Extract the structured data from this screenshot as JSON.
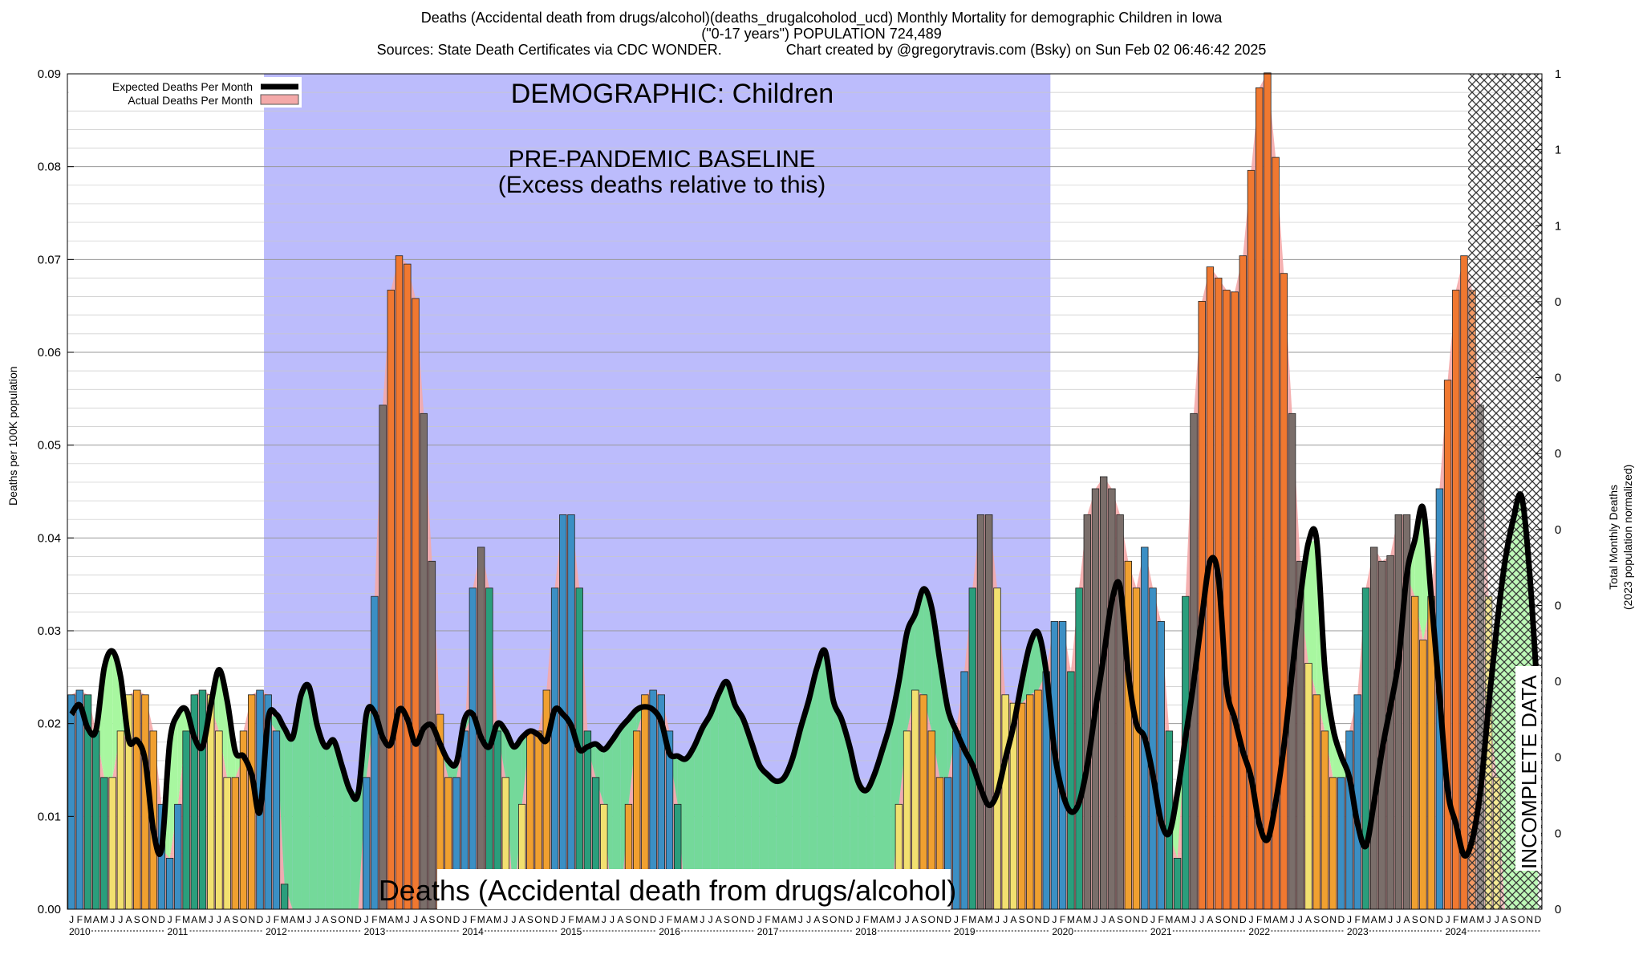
{
  "titles": {
    "line1": "Deaths (Accidental death from drugs/alcohol)(deaths_drugalcoholod_ucd) Monthly Mortality for demographic Children in Iowa",
    "line2": "(\"0-17 years\") POPULATION 724,489",
    "line3_left": "Sources: State Death Certificates via CDC WONDER.",
    "line3_right": "Chart created by @gregorytravis.com (Bsky) on Sun Feb 02 06:46:42 2025"
  },
  "colors": {
    "baseline_shade": "#bcbcfc",
    "expected_line": "#000000",
    "actual_fill": "#f4a9a9",
    "deficit_fill": "#74d99a",
    "excess_light": "#a8f7a0",
    "winter_bar": "#3b8fc4",
    "spring_bar": "#2a9e7c",
    "summer_bar": "#f2e070",
    "fall_bar": "#f0a030",
    "peak_bar": "#f07830",
    "overlap_bar": "#7a6e6a",
    "incomplete_hatch": "#444444"
  },
  "chart_data": {
    "type": "bar",
    "title": "Deaths (Accidental death from drugs/alcohol)(deaths_drugalcoholod_ucd) Monthly Mortality for demographic Children in Iowa",
    "ylabel": "Deaths per 100K population",
    "y2label_1": "Total Monthly Deaths",
    "y2label_2": "(2023 population normalized)",
    "ylim": [
      0,
      0.09
    ],
    "yticks": [
      "0.00",
      "0.01",
      "0.02",
      "0.03",
      "0.04",
      "0.05",
      "0.06",
      "0.07",
      "0.08",
      "0.09"
    ],
    "y2ticks": [
      "0",
      "0",
      "0",
      "0",
      "0",
      "0",
      "0",
      "0",
      "0",
      "1",
      "1",
      "1"
    ],
    "month_letters": [
      "J",
      "F",
      "M",
      "A",
      "M",
      "J",
      "J",
      "A",
      "S",
      "O",
      "N",
      "D"
    ],
    "years": [
      "2010",
      "2011",
      "2012",
      "2013",
      "2014",
      "2015",
      "2016",
      "2017",
      "2018",
      "2019",
      "2020",
      "2021",
      "2022",
      "2023",
      "2024"
    ],
    "legend": {
      "expected": "Expected Deaths Per Month",
      "actual": "Actual Deaths Per Month",
      "placement": "top-left"
    },
    "annotations": {
      "demographic": "DEMOGRAPHIC: Children",
      "baseline_1": "PRE-PANDEMIC BASELINE",
      "baseline_2": "(Excess deaths relative to this)",
      "bottom_label": "Deaths (Accidental death from drugs/alcohol)",
      "incomplete": "INCOMPLETE DATA"
    },
    "baseline_period": [
      "2012-01",
      "2019-12"
    ],
    "incomplete_period": [
      "2024-04",
      "2024-12"
    ],
    "actual": [
      0.0231,
      0.0236,
      0.0231,
      0.0192,
      0.0142,
      0.0142,
      0.0192,
      0.0231,
      0.0236,
      0.0231,
      0.0192,
      0.0113,
      0.0055,
      0.0113,
      0.0192,
      0.0231,
      0.0236,
      0.0231,
      0.0192,
      0.0142,
      0.0142,
      0.0192,
      0.0231,
      0.0236,
      0.0231,
      0.0192,
      0.0027,
      0.0,
      0.0,
      0.0,
      0.0,
      0.0,
      0.0,
      0.0,
      0.0,
      0.0,
      0.0142,
      0.0337,
      0.0543,
      0.0667,
      0.0704,
      0.0695,
      0.0658,
      0.0534,
      0.0375,
      0.021,
      0.0142,
      0.0142,
      0.0192,
      0.0346,
      0.039,
      0.0346,
      0.0192,
      0.0142,
      0.0,
      0.0113,
      0.0192,
      0.0192,
      0.0236,
      0.0346,
      0.0425,
      0.0425,
      0.0346,
      0.0192,
      0.0142,
      0.0113,
      0.0,
      0.0,
      0.0113,
      0.0192,
      0.0231,
      0.0236,
      0.0231,
      0.0192,
      0.0113,
      0.0,
      0.0,
      0.0,
      0.0,
      0.0,
      0.0,
      0.0,
      0.0,
      0.0,
      0.0,
      0.0,
      0.0,
      0.0,
      0.0,
      0.0,
      0.0,
      0.0,
      0.0,
      0.0,
      0.0,
      0.0,
      0.0,
      0.0,
      0.0,
      0.0,
      0.0,
      0.0113,
      0.0192,
      0.0236,
      0.0231,
      0.0192,
      0.0142,
      0.0142,
      0.0192,
      0.0256,
      0.0346,
      0.0425,
      0.0425,
      0.0346,
      0.0231,
      0.0222,
      0.0222,
      0.0231,
      0.0236,
      0.0256,
      0.031,
      0.031,
      0.0256,
      0.0346,
      0.0425,
      0.0453,
      0.0466,
      0.0453,
      0.0425,
      0.0375,
      0.0346,
      0.039,
      0.0346,
      0.031,
      0.0192,
      0.0055,
      0.0337,
      0.0534,
      0.0655,
      0.0692,
      0.068,
      0.0667,
      0.0665,
      0.0704,
      0.0796,
      0.0885,
      0.0901,
      0.081,
      0.0685,
      0.0534,
      0.0375,
      0.0265,
      0.0231,
      0.0192,
      0.0142,
      0.0142,
      0.0192,
      0.0231,
      0.0346,
      0.039,
      0.0375,
      0.0381,
      0.0425,
      0.0425,
      0.0337,
      0.029,
      0.0337,
      0.0453,
      0.057,
      0.0667,
      0.0704,
      0.0667,
      0.0543,
      0.0337,
      0.0142,
      0.0,
      0.0,
      0.0,
      0.0,
      0.0
    ],
    "expected": [
      0.021,
      0.022,
      0.0195,
      0.0193,
      0.026,
      0.0278,
      0.025,
      0.0182,
      0.0182,
      0.016,
      0.0085,
      0.0065,
      0.018,
      0.021,
      0.0215,
      0.0185,
      0.0175,
      0.022,
      0.0258,
      0.0225,
      0.017,
      0.0165,
      0.0145,
      0.0105,
      0.0205,
      0.021,
      0.0195,
      0.0185,
      0.023,
      0.024,
      0.0198,
      0.0175,
      0.0182,
      0.0155,
      0.0128,
      0.0125,
      0.021,
      0.0212,
      0.0185,
      0.0178,
      0.0215,
      0.0205,
      0.0178,
      0.0195,
      0.0198,
      0.0178,
      0.016,
      0.0158,
      0.0205,
      0.021,
      0.0185,
      0.0175,
      0.02,
      0.0192,
      0.0175,
      0.0185,
      0.0192,
      0.0188,
      0.0182,
      0.0215,
      0.021,
      0.0198,
      0.0172,
      0.0175,
      0.0178,
      0.0172,
      0.0182,
      0.0195,
      0.0205,
      0.0215,
      0.0218,
      0.0215,
      0.0202,
      0.0168,
      0.0165,
      0.0162,
      0.0175,
      0.0195,
      0.021,
      0.0232,
      0.0245,
      0.022,
      0.0205,
      0.018,
      0.0155,
      0.0145,
      0.0138,
      0.0142,
      0.0162,
      0.0195,
      0.0225,
      0.026,
      0.0278,
      0.0225,
      0.0205,
      0.0175,
      0.0138,
      0.0128,
      0.0145,
      0.0172,
      0.0202,
      0.0245,
      0.0298,
      0.0318,
      0.0345,
      0.0325,
      0.0268,
      0.0215,
      0.0192,
      0.0172,
      0.0155,
      0.013,
      0.0112,
      0.0125,
      0.0162,
      0.0198,
      0.0245,
      0.0285,
      0.0298,
      0.0255,
      0.017,
      0.0125,
      0.0105,
      0.0115,
      0.0155,
      0.0215,
      0.0272,
      0.0332,
      0.0348,
      0.0255,
      0.02,
      0.0185,
      0.0145,
      0.0095,
      0.0082,
      0.0125,
      0.0185,
      0.0245,
      0.0315,
      0.0375,
      0.0358,
      0.024,
      0.0205,
      0.017,
      0.0142,
      0.0092,
      0.0075,
      0.0115,
      0.0175,
      0.0255,
      0.0335,
      0.0395,
      0.0398,
      0.026,
      0.0195,
      0.0165,
      0.0142,
      0.0092,
      0.0068,
      0.0115,
      0.0172,
      0.0218,
      0.0268,
      0.036,
      0.0398,
      0.0432,
      0.0335,
      0.023,
      0.0128,
      0.0092,
      0.0058,
      0.0075,
      0.0128,
      0.022,
      0.0305,
      0.0375,
      0.042,
      0.0445,
      0.0362,
      0.0225
    ]
  }
}
